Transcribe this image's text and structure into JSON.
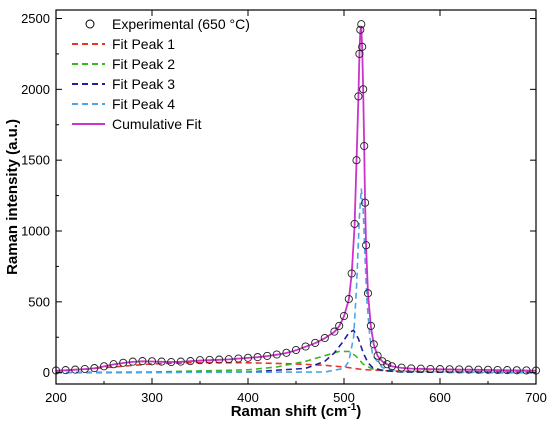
{
  "chart_data": {
    "type": "line",
    "xlabel": "Raman shift (cm",
    "xlabel_sup": "-1",
    "xlabel_end": ")",
    "ylabel": "Raman intensity (a.u.)",
    "xlim": [
      200,
      700
    ],
    "ylim": [
      -80,
      2560
    ],
    "xticks": [
      200,
      300,
      400,
      500,
      600,
      700
    ],
    "yticks": [
      0,
      500,
      1000,
      1500,
      2000,
      2500
    ],
    "grid": false,
    "legend_position": "top-left",
    "legend": [
      {
        "label": "Experimental (650 °C)",
        "color": "#000000",
        "style": "circle"
      },
      {
        "label": "Fit Peak 1",
        "color": "#e8322a",
        "style": "dashed"
      },
      {
        "label": "Fit Peak 2",
        "color": "#3cb81c",
        "style": "dashed"
      },
      {
        "label": "Fit Peak 3",
        "color": "#1f1f9e",
        "style": "dashed"
      },
      {
        "label": "Fit Peak 4",
        "color": "#4aa6e8",
        "style": "dashed"
      },
      {
        "label": "Cumulative Fit",
        "color": "#cc33cc",
        "style": "solid"
      }
    ],
    "experimental": {
      "x": [
        200,
        210,
        220,
        230,
        240,
        250,
        260,
        270,
        280,
        290,
        300,
        310,
        320,
        330,
        340,
        350,
        360,
        370,
        380,
        390,
        400,
        410,
        420,
        430,
        440,
        450,
        460,
        470,
        480,
        490,
        495,
        500,
        505,
        508,
        511,
        513,
        515,
        516,
        517,
        518,
        519,
        520,
        521,
        522,
        523,
        525,
        528,
        531,
        535,
        540,
        545,
        550,
        560,
        570,
        580,
        590,
        600,
        610,
        620,
        630,
        640,
        650,
        660,
        670,
        680,
        690,
        700
      ],
      "y": [
        15,
        18,
        22,
        26,
        32,
        45,
        60,
        70,
        78,
        82,
        80,
        78,
        75,
        78,
        82,
        88,
        90,
        92,
        95,
        100,
        105,
        110,
        118,
        128,
        140,
        160,
        185,
        210,
        245,
        290,
        330,
        400,
        520,
        700,
        1050,
        1500,
        1950,
        2250,
        2420,
        2460,
        2300,
        2000,
        1600,
        1200,
        900,
        560,
        330,
        200,
        120,
        80,
        60,
        45,
        35,
        30,
        28,
        26,
        25,
        24,
        23,
        22,
        21,
        20,
        19,
        18,
        17,
        16,
        15
      ]
    },
    "series": [
      {
        "name": "Cumulative Fit",
        "color": "#cc33cc",
        "x": [
          200,
          210,
          220,
          230,
          240,
          250,
          260,
          270,
          280,
          290,
          300,
          310,
          320,
          330,
          340,
          350,
          360,
          370,
          380,
          390,
          400,
          410,
          420,
          430,
          440,
          450,
          460,
          470,
          480,
          490,
          495,
          500,
          505,
          508,
          511,
          513,
          515,
          516,
          517,
          518,
          519,
          520,
          521,
          522,
          523,
          525,
          528,
          531,
          535,
          540,
          545,
          550,
          560,
          570,
          580,
          590,
          600,
          610,
          620,
          630,
          640,
          650,
          660,
          670,
          680,
          690,
          700
        ],
        "y": [
          14,
          17,
          21,
          25,
          31,
          44,
          58,
          68,
          76,
          80,
          79,
          77,
          75,
          77,
          81,
          86,
          89,
          91,
          94,
          99,
          104,
          109,
          117,
          127,
          139,
          158,
          183,
          208,
          243,
          288,
          328,
          398,
          515,
          695,
          1040,
          1490,
          1940,
          2240,
          2410,
          2440,
          2290,
          1990,
          1590,
          1190,
          890,
          555,
          325,
          198,
          118,
          79,
          59,
          44,
          34,
          29,
          27,
          25,
          24,
          23,
          22,
          21,
          20,
          19,
          18,
          17,
          16,
          15,
          14
        ]
      },
      {
        "name": "Fit Peak 1",
        "color": "#e8322a",
        "x": [
          200,
          250,
          300,
          350,
          400,
          450,
          480,
          500,
          520,
          550,
          600,
          650,
          700
        ],
        "y": [
          12,
          35,
          62,
          72,
          70,
          62,
          52,
          40,
          22,
          12,
          8,
          6,
          5
        ]
      },
      {
        "name": "Fit Peak 2",
        "color": "#3cb81c",
        "x": [
          200,
          300,
          400,
          430,
          460,
          480,
          495,
          505,
          512,
          520,
          530,
          560,
          700
        ],
        "y": [
          0,
          5,
          20,
          40,
          80,
          120,
          150,
          150,
          120,
          60,
          25,
          5,
          0
        ]
      },
      {
        "name": "Fit Peak 3",
        "color": "#1f1f9e",
        "x": [
          200,
          400,
          460,
          480,
          490,
          498,
          505,
          510,
          515,
          520,
          525,
          530,
          540,
          560,
          700
        ],
        "y": [
          0,
          5,
          30,
          80,
          140,
          210,
          280,
          300,
          240,
          140,
          70,
          35,
          15,
          5,
          0
        ]
      },
      {
        "name": "Fit Peak 4",
        "color": "#4aa6e8",
        "x": [
          200,
          480,
          500,
          505,
          510,
          513,
          516,
          518,
          520,
          522,
          524,
          527,
          530,
          540,
          560,
          700
        ],
        "y": [
          0,
          5,
          30,
          80,
          250,
          600,
          1100,
          1300,
          1150,
          800,
          500,
          250,
          120,
          35,
          8,
          0
        ]
      }
    ]
  }
}
